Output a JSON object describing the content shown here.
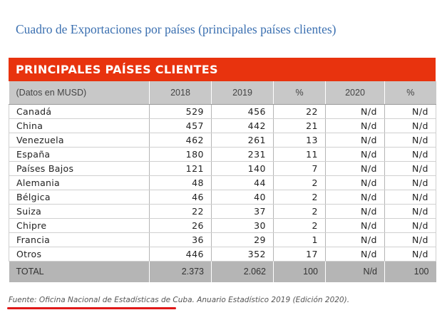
{
  "page": {
    "title": "Cuadro de Exportaciones por países (principales países clientes)"
  },
  "table": {
    "banner": "PRINCIPALES PAÍSES CLIENTES",
    "headers": [
      "(Datos en MUSD)",
      "2018",
      "2019",
      "%",
      "2020",
      "%"
    ],
    "rows": [
      [
        "Canadá",
        "529",
        "456",
        "22",
        "N/d",
        "N/d"
      ],
      [
        "China",
        "457",
        "442",
        "21",
        "N/d",
        "N/d"
      ],
      [
        "Venezuela",
        "462",
        "261",
        "13",
        "N/d",
        "N/d"
      ],
      [
        "España",
        "180",
        "231",
        "11",
        "N/d",
        "N/d"
      ],
      [
        "Países Bajos",
        "121",
        "140",
        "7",
        "N/d",
        "N/d"
      ],
      [
        "Alemania",
        "48",
        "44",
        "2",
        "N/d",
        "N/d"
      ],
      [
        "Bélgica",
        "46",
        "40",
        "2",
        "N/d",
        "N/d"
      ],
      [
        "Suiza",
        "22",
        "37",
        "2",
        "N/d",
        "N/d"
      ],
      [
        "Chipre",
        "26",
        "30",
        "2",
        "N/d",
        "N/d"
      ],
      [
        "Francia",
        "36",
        "29",
        "1",
        "N/d",
        "N/d"
      ],
      [
        "Otros",
        "446",
        "352",
        "17",
        "N/d",
        "N/d"
      ]
    ],
    "total": [
      "TOTAL",
      "2.373",
      "2.062",
      "100",
      "N/d",
      "100"
    ]
  },
  "source": {
    "label": "Fuente: Oficina Nacional de Estadísticas de Cuba",
    "rest": ". Anuario Estadístico 2019 (Edición 2020)."
  },
  "colors": {
    "banner": "#e8330e",
    "title": "#3a6fb0",
    "underline": "#e01818"
  }
}
